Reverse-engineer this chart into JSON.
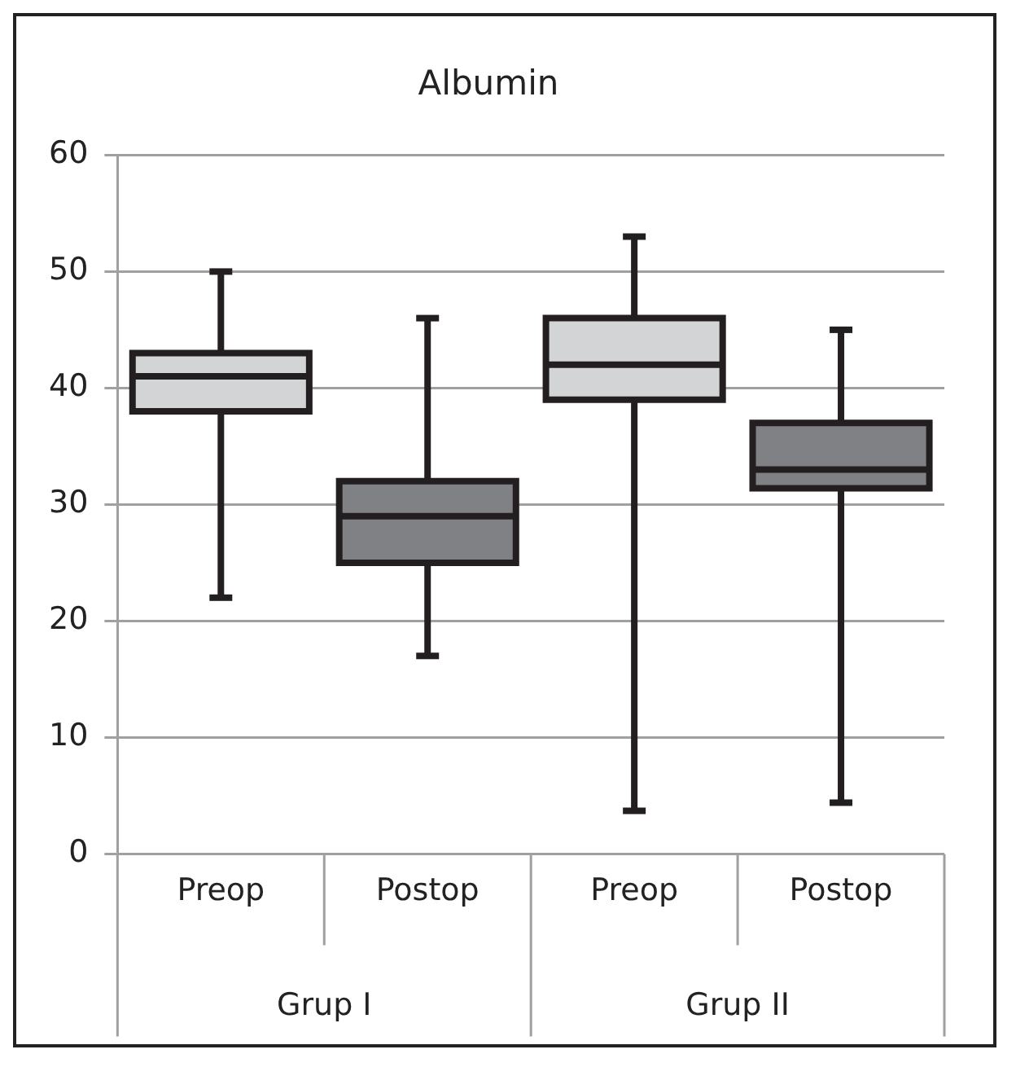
{
  "chart_data": {
    "type": "box",
    "title": "Albumin",
    "categories": [
      "Preop",
      "Postop",
      "Preop",
      "Postop"
    ],
    "colors": [
      "#d3d4d6",
      "#808184",
      "#d3d4d6",
      "#808184"
    ],
    "boxes": [
      {
        "low": 22,
        "q1": 38,
        "median": 41,
        "q3": 43,
        "high": 50
      },
      {
        "low": 17,
        "q1": 25,
        "median": 29,
        "q3": 32,
        "high": 46
      },
      {
        "low": 3.7,
        "q1": 39,
        "median": 42,
        "q3": 46,
        "high": 53
      },
      {
        "low": 4.4,
        "q1": 31.4,
        "median": 33,
        "q3": 37,
        "high": 45
      }
    ],
    "annotations": [
      "Grup I",
      "Grup II"
    ],
    "ylim": [
      0,
      60
    ],
    "yticks": [
      0,
      10,
      20,
      30,
      40,
      50,
      60
    ],
    "grid": "y",
    "legend": false
  }
}
